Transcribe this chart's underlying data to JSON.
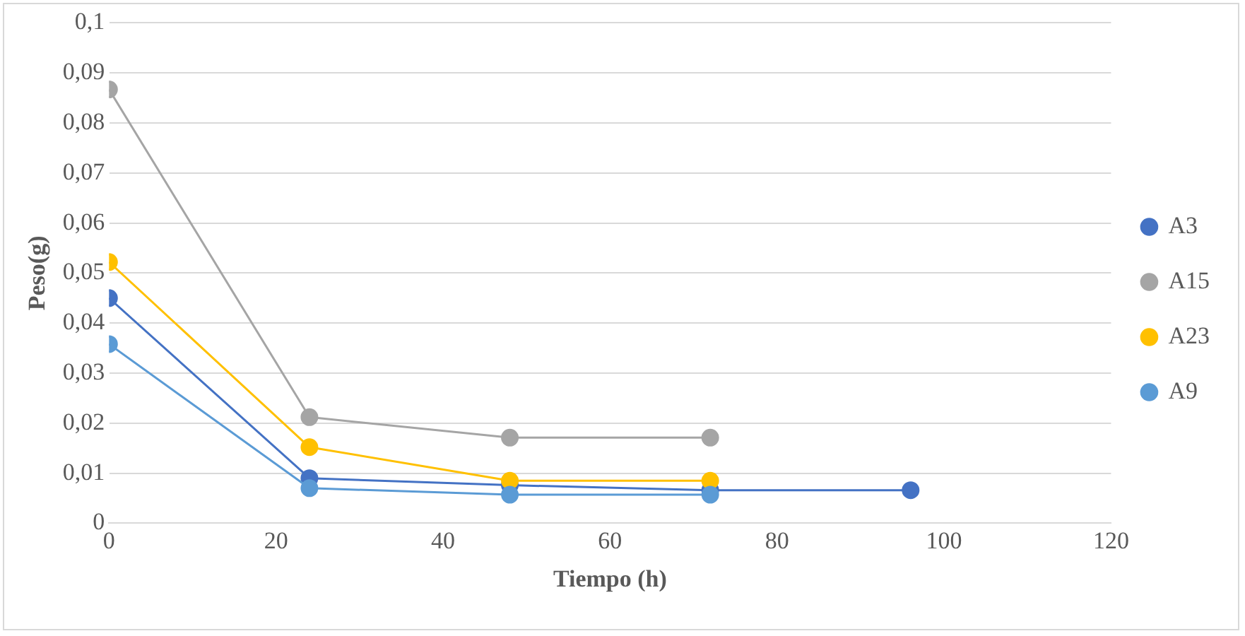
{
  "chart_data": {
    "type": "line",
    "xlabel": "Tiempo (h)",
    "ylabel": "Peso(g)",
    "xlim": [
      0,
      120
    ],
    "xticks": [
      0,
      20,
      40,
      60,
      80,
      100,
      120
    ],
    "ylim": [
      0,
      0.1
    ],
    "yticks": [
      0,
      {
        "value": 0.01,
        "label": "0,01"
      },
      {
        "value": 0.02,
        "label": "0,02"
      },
      {
        "value": 0.03,
        "label": "0,03"
      },
      {
        "value": 0.04,
        "label": "0,04"
      },
      {
        "value": 0.05,
        "label": "0,05"
      },
      {
        "value": 0.06,
        "label": "0,06"
      },
      {
        "value": 0.07,
        "label": "0,07"
      },
      {
        "value": 0.08,
        "label": "0,08"
      },
      {
        "value": 0.09,
        "label": "0,09"
      },
      {
        "value": 0.1,
        "label": "0,1"
      }
    ],
    "grid": "y",
    "legend": "right",
    "marker": "circle",
    "line_style": "solid",
    "series": [
      {
        "name": "A3",
        "color": "#4472c4",
        "x": [
          0,
          24,
          48,
          72,
          96
        ],
        "values": [
          0.045,
          0.009,
          0.0076,
          0.0066,
          0.0066
        ]
      },
      {
        "name": "A15",
        "color": "#a5a5a5",
        "x": [
          0,
          24,
          48,
          72
        ],
        "values": [
          0.0867,
          0.0212,
          0.0171,
          0.0171
        ]
      },
      {
        "name": "A23",
        "color": "#ffc000",
        "x": [
          0,
          24,
          48,
          72
        ],
        "values": [
          0.0522,
          0.0152,
          0.0085,
          0.0085
        ]
      },
      {
        "name": "A9",
        "color": "#5b9bd5",
        "x": [
          0,
          24,
          48,
          72
        ],
        "values": [
          0.0358,
          0.007,
          0.0057,
          0.0057
        ]
      }
    ]
  }
}
